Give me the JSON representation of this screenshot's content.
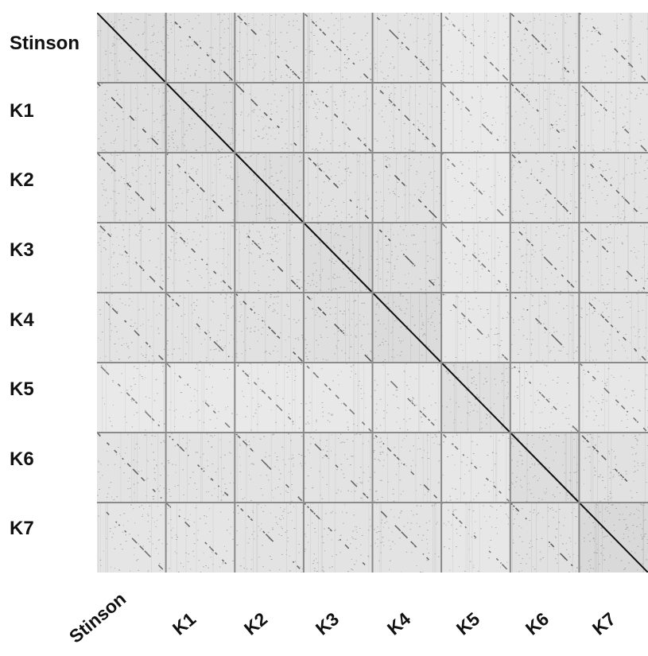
{
  "row_labels": [
    "Stinson",
    "K1",
    "K2",
    "K3",
    "K4",
    "K5",
    "K6",
    "K7"
  ],
  "col_labels": [
    "Stinson",
    "K1",
    "K2",
    "K3",
    "K4",
    "K5",
    "K6",
    "K7"
  ],
  "colors": {
    "background": "#ffffff",
    "grid_line": "#8a8a8a",
    "main_diagonal": "#111111",
    "similarity_dots": "#2a2a2a"
  },
  "cell_tone": [
    [
      0.6,
      0.55,
      0.5,
      0.45,
      0.45,
      0.3,
      0.45,
      0.4
    ],
    [
      0.55,
      0.6,
      0.5,
      0.45,
      0.45,
      0.3,
      0.45,
      0.4
    ],
    [
      0.5,
      0.5,
      0.6,
      0.5,
      0.5,
      0.3,
      0.45,
      0.45
    ],
    [
      0.45,
      0.45,
      0.5,
      0.62,
      0.55,
      0.32,
      0.45,
      0.45
    ],
    [
      0.45,
      0.45,
      0.5,
      0.55,
      0.65,
      0.35,
      0.45,
      0.45
    ],
    [
      0.3,
      0.3,
      0.3,
      0.32,
      0.35,
      0.55,
      0.35,
      0.35
    ],
    [
      0.45,
      0.45,
      0.45,
      0.45,
      0.45,
      0.35,
      0.6,
      0.5
    ],
    [
      0.4,
      0.4,
      0.45,
      0.45,
      0.45,
      0.35,
      0.5,
      0.7
    ]
  ]
}
